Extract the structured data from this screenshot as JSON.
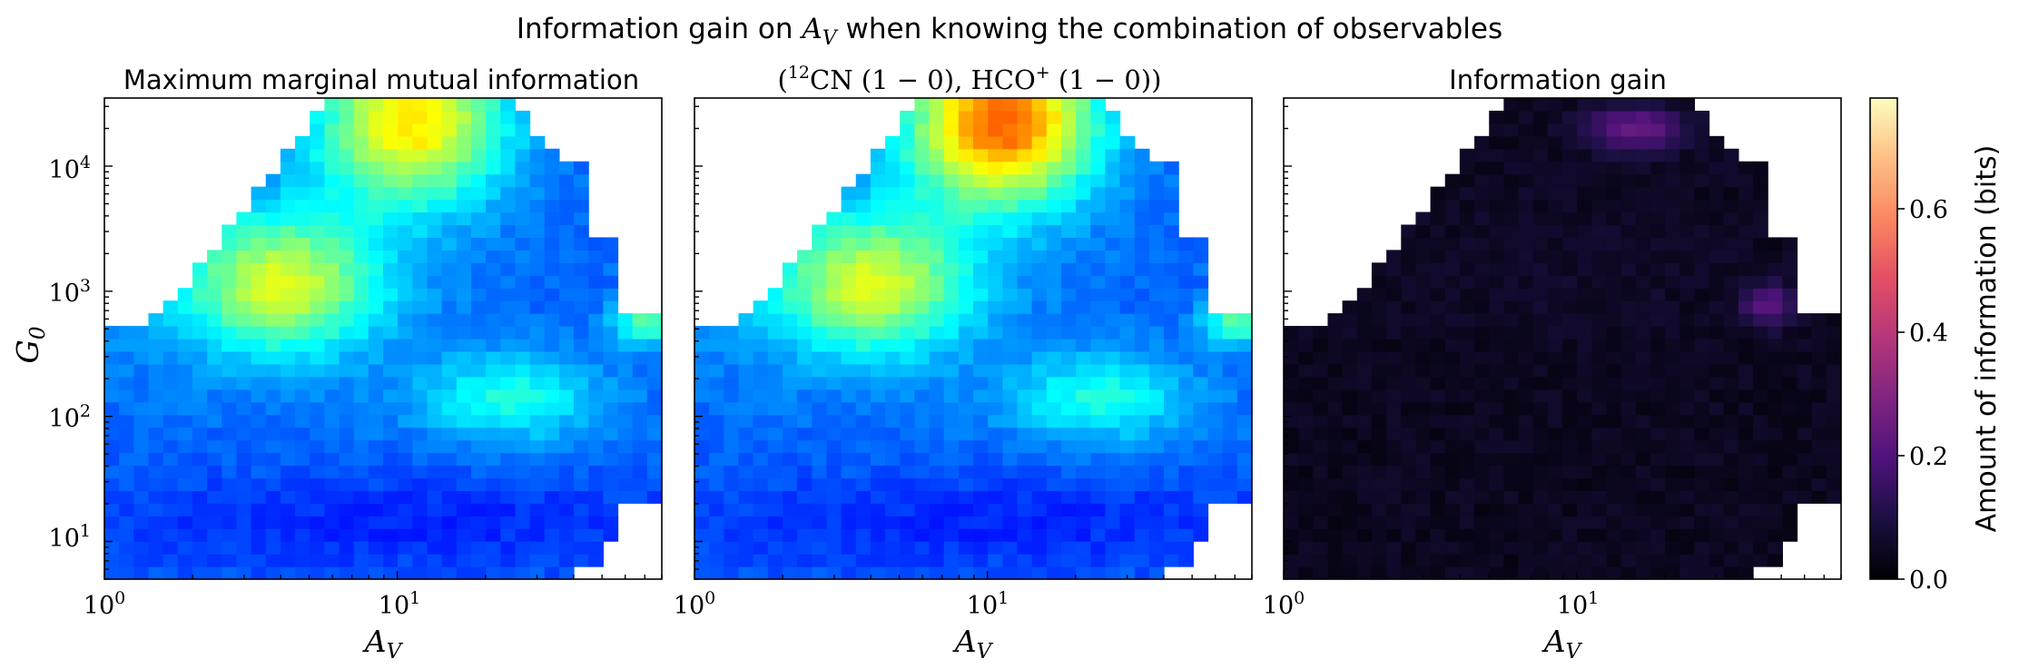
{
  "figure": {
    "suptitle_prefix": "Information gain on ",
    "suptitle_var": "A",
    "suptitle_var_sub": "V",
    "suptitle_suffix": " when knowing the combination of observables",
    "colorbar_label": "Amount of information (bits)",
    "colorbar_ticks": [
      "0.0",
      "0.2",
      "0.4",
      "0.6"
    ],
    "xlabel_main": "A",
    "xlabel_sub": "V",
    "ylabel_main": "G",
    "ylabel_sub": "0",
    "x_tick_labels": [
      "10",
      "0",
      "10",
      "1"
    ],
    "y_tick_labels": [
      [
        "10",
        "1"
      ],
      [
        "10",
        "2"
      ],
      [
        "10",
        "3"
      ],
      [
        "10",
        "4"
      ]
    ]
  },
  "panels": [
    {
      "title": "Maximum marginal mutual information"
    },
    {
      "title_parts": [
        "(",
        "12",
        "CN (1 − 0), HCO",
        "+",
        " (1 − 0))"
      ]
    },
    {
      "title": "Information gain"
    }
  ],
  "chart_data": [
    {
      "type": "heatmap",
      "title": "Maximum marginal mutual information",
      "xlabel": "A_V",
      "ylabel": "G_0",
      "x_scale": "log",
      "y_scale": "log",
      "xlim": [
        1,
        80
      ],
      "ylim": [
        5,
        35000
      ],
      "colormap": "jet",
      "value_range": [
        0.0,
        0.75
      ],
      "features": [
        {
          "region": "A_V 6-20, G_0 > 1e4",
          "value": 0.5
        },
        {
          "region": "A_V 3-6, G_0 ~ 1e3",
          "value": 0.4
        },
        {
          "region": "A_V 15-35, G_0 ~ 1.5e2",
          "value": 0.32
        },
        {
          "region": "A_V > 60, G_0 ~ 6e2",
          "value": 0.4
        },
        {
          "region": "background",
          "value": 0.18
        }
      ]
    },
    {
      "type": "heatmap",
      "title": "(12CN (1-0), HCO+ (1-0))",
      "xlabel": "A_V",
      "x_scale": "log",
      "y_scale": "log",
      "xlim": [
        1,
        80
      ],
      "ylim": [
        5,
        35000
      ],
      "colormap": "jet",
      "value_range": [
        0.0,
        0.75
      ],
      "features": [
        {
          "region": "A_V 6-20, G_0 > 1e4",
          "value": 0.62
        },
        {
          "region": "A_V 3-6, G_0 ~ 1e3",
          "value": 0.4
        },
        {
          "region": "A_V 15-35, G_0 ~ 1.5e2",
          "value": 0.32
        },
        {
          "region": "background",
          "value": 0.18
        }
      ]
    },
    {
      "type": "heatmap",
      "title": "Information gain",
      "xlabel": "A_V",
      "x_scale": "log",
      "y_scale": "log",
      "xlim": [
        1,
        80
      ],
      "ylim": [
        5,
        35000
      ],
      "colormap": "magma",
      "value_range": [
        0.0,
        0.75
      ],
      "features": [
        {
          "region": "A_V 10-20, G_0 ~ 2.5e4",
          "value": 0.3
        },
        {
          "region": "A_V 35-55, G_0 ~ 8e2",
          "value": 0.22
        },
        {
          "region": "background",
          "value": 0.03
        }
      ]
    }
  ]
}
